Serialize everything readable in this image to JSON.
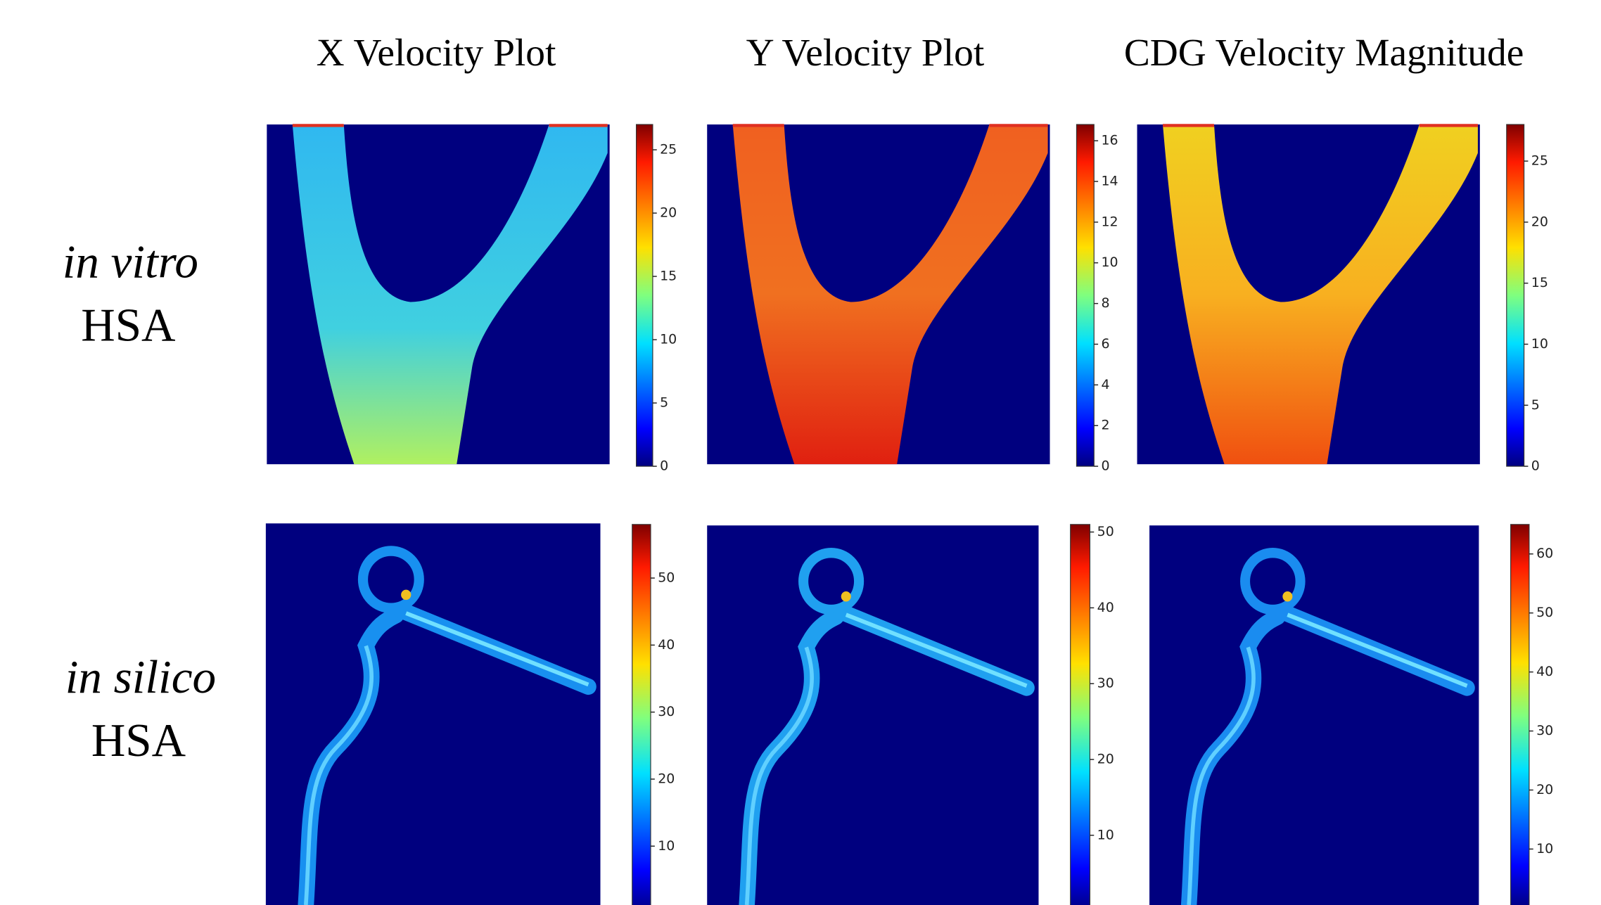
{
  "columns": [
    "X Velocity Plot",
    "Y Velocity Plot",
    "CDG Velocity Magnitude"
  ],
  "rows": [
    {
      "label": "in vitro",
      "sublabel": "HSA",
      "colorbars": [
        {
          "ylim": [
            0,
            27
          ],
          "yticks": [
            0,
            5,
            10,
            15,
            20,
            25
          ]
        },
        {
          "ylim": [
            0,
            16.8
          ],
          "yticks": [
            0,
            2,
            4,
            6,
            8,
            10,
            12,
            14,
            16
          ]
        },
        {
          "ylim": [
            0,
            28
          ],
          "yticks": [
            0,
            5,
            10,
            15,
            20,
            25
          ]
        }
      ]
    },
    {
      "label": "in silico",
      "sublabel": "HSA",
      "colorbars": [
        {
          "ylim": [
            0,
            58
          ],
          "yticks": [
            10,
            20,
            30,
            40,
            50
          ]
        },
        {
          "ylim": [
            0,
            51
          ],
          "yticks": [
            10,
            20,
            30,
            40,
            50
          ]
        },
        {
          "ylim": [
            0,
            65
          ],
          "yticks": [
            10,
            20,
            30,
            40,
            50,
            60
          ]
        }
      ]
    }
  ]
}
